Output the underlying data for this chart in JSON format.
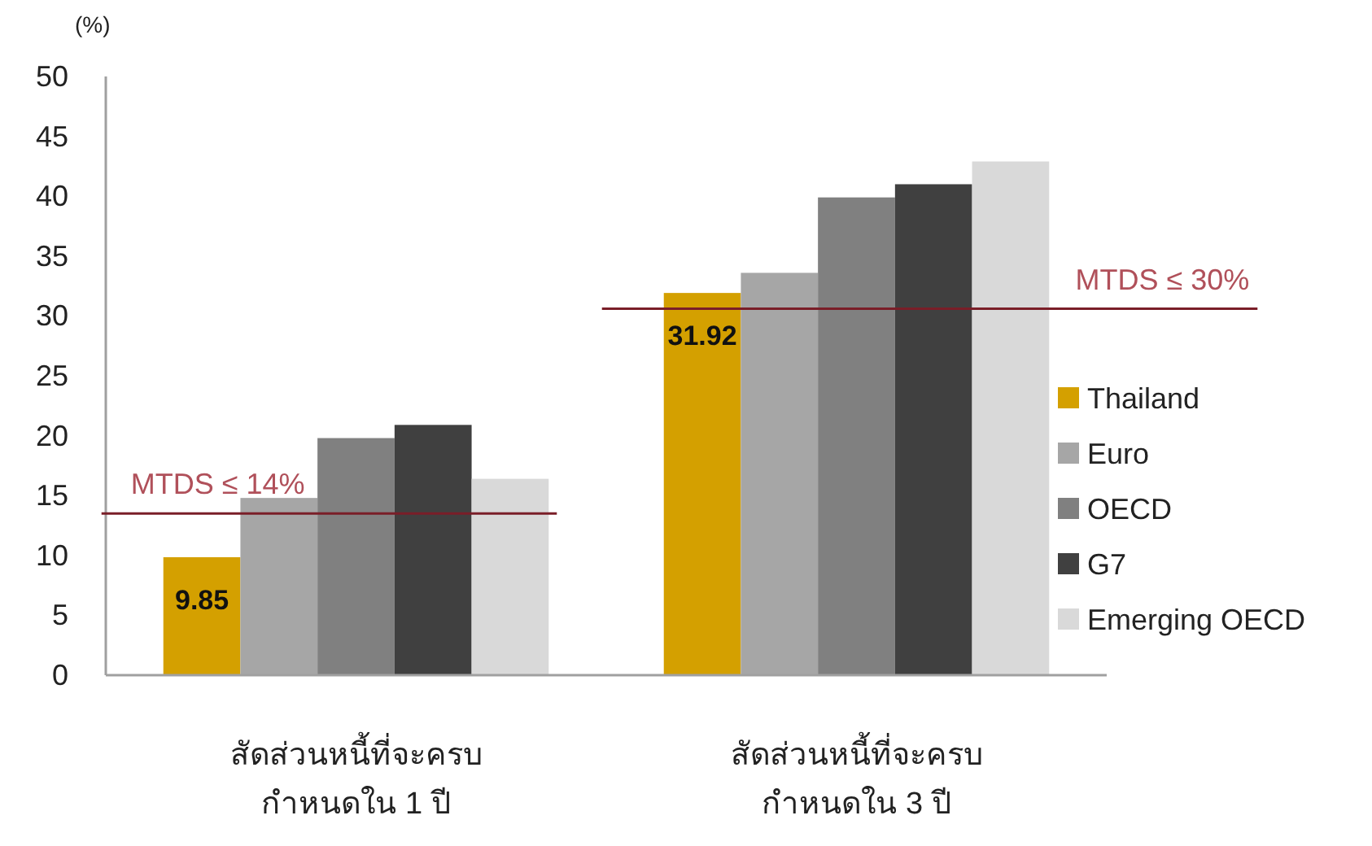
{
  "chart_data": {
    "type": "bar",
    "ylabel": "(%)",
    "categories": [
      "สัดส่วนหนี้ที่จะครบ\nกำหนดใน 1 ปี",
      "สัดส่วนหนี้ที่จะครบ\nกำหนดใน 3 ปี"
    ],
    "series": [
      {
        "name": "Thailand",
        "color": "#d4a000",
        "values": [
          9.85,
          31.92
        ],
        "value_labels": [
          "9.85",
          "31.92"
        ]
      },
      {
        "name": "Euro",
        "color": "#a6a6a6",
        "values": [
          14.8,
          33.6
        ]
      },
      {
        "name": "OECD",
        "color": "#808080",
        "values": [
          19.8,
          39.9
        ]
      },
      {
        "name": "G7",
        "color": "#404040",
        "values": [
          20.9,
          41.0
        ]
      },
      {
        "name": "Emerging OECD",
        "color": "#d9d9d9",
        "values": [
          16.4,
          42.9
        ]
      }
    ],
    "ylim": [
      0,
      50
    ],
    "yticks": [
      0,
      5,
      10,
      15,
      20,
      25,
      30,
      35,
      40,
      45,
      50
    ],
    "ref_lines": [
      {
        "axis": "y",
        "value": 13.5,
        "label": "MTDS ≤ 14%",
        "color": "#7a1e28"
      },
      {
        "axis": "y",
        "value": 30.6,
        "label": "MTDS ≤ 30%",
        "color": "#7a1e28"
      }
    ],
    "grid": false,
    "legend": "right"
  }
}
